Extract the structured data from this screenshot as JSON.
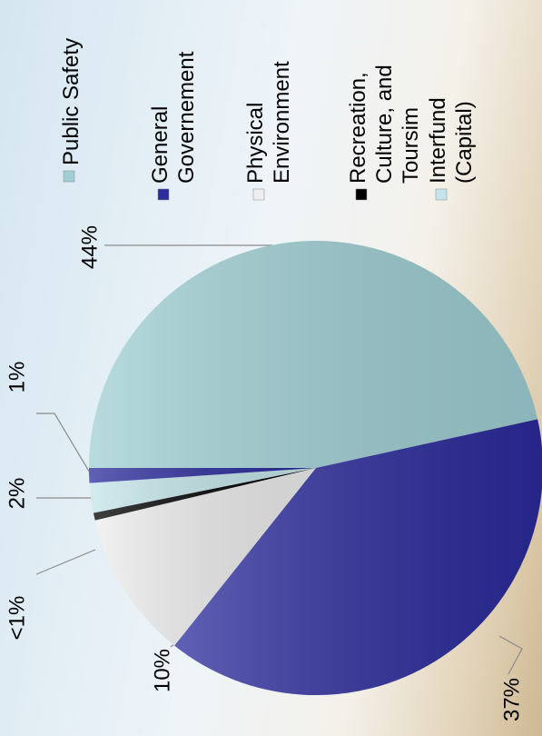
{
  "chart_data": {
    "type": "pie",
    "categories": [
      "Public Safety",
      "General\nGovernement",
      "Physical\nEnvironment",
      "Recreation,\nCulture, and\nToursim",
      "Interfund\n(Capital)",
      null
    ],
    "values": [
      44,
      37,
      10,
      0.5,
      2,
      1
    ],
    "value_labels": [
      "44%",
      "37%",
      "10%",
      "<1%",
      "2%",
      "1%"
    ],
    "colors": [
      "#9fcfd4",
      "#2b2b9c",
      "#eeeeee",
      "#000000",
      "#c4e6ea",
      "#2b2b9c"
    ],
    "legend": "right"
  }
}
